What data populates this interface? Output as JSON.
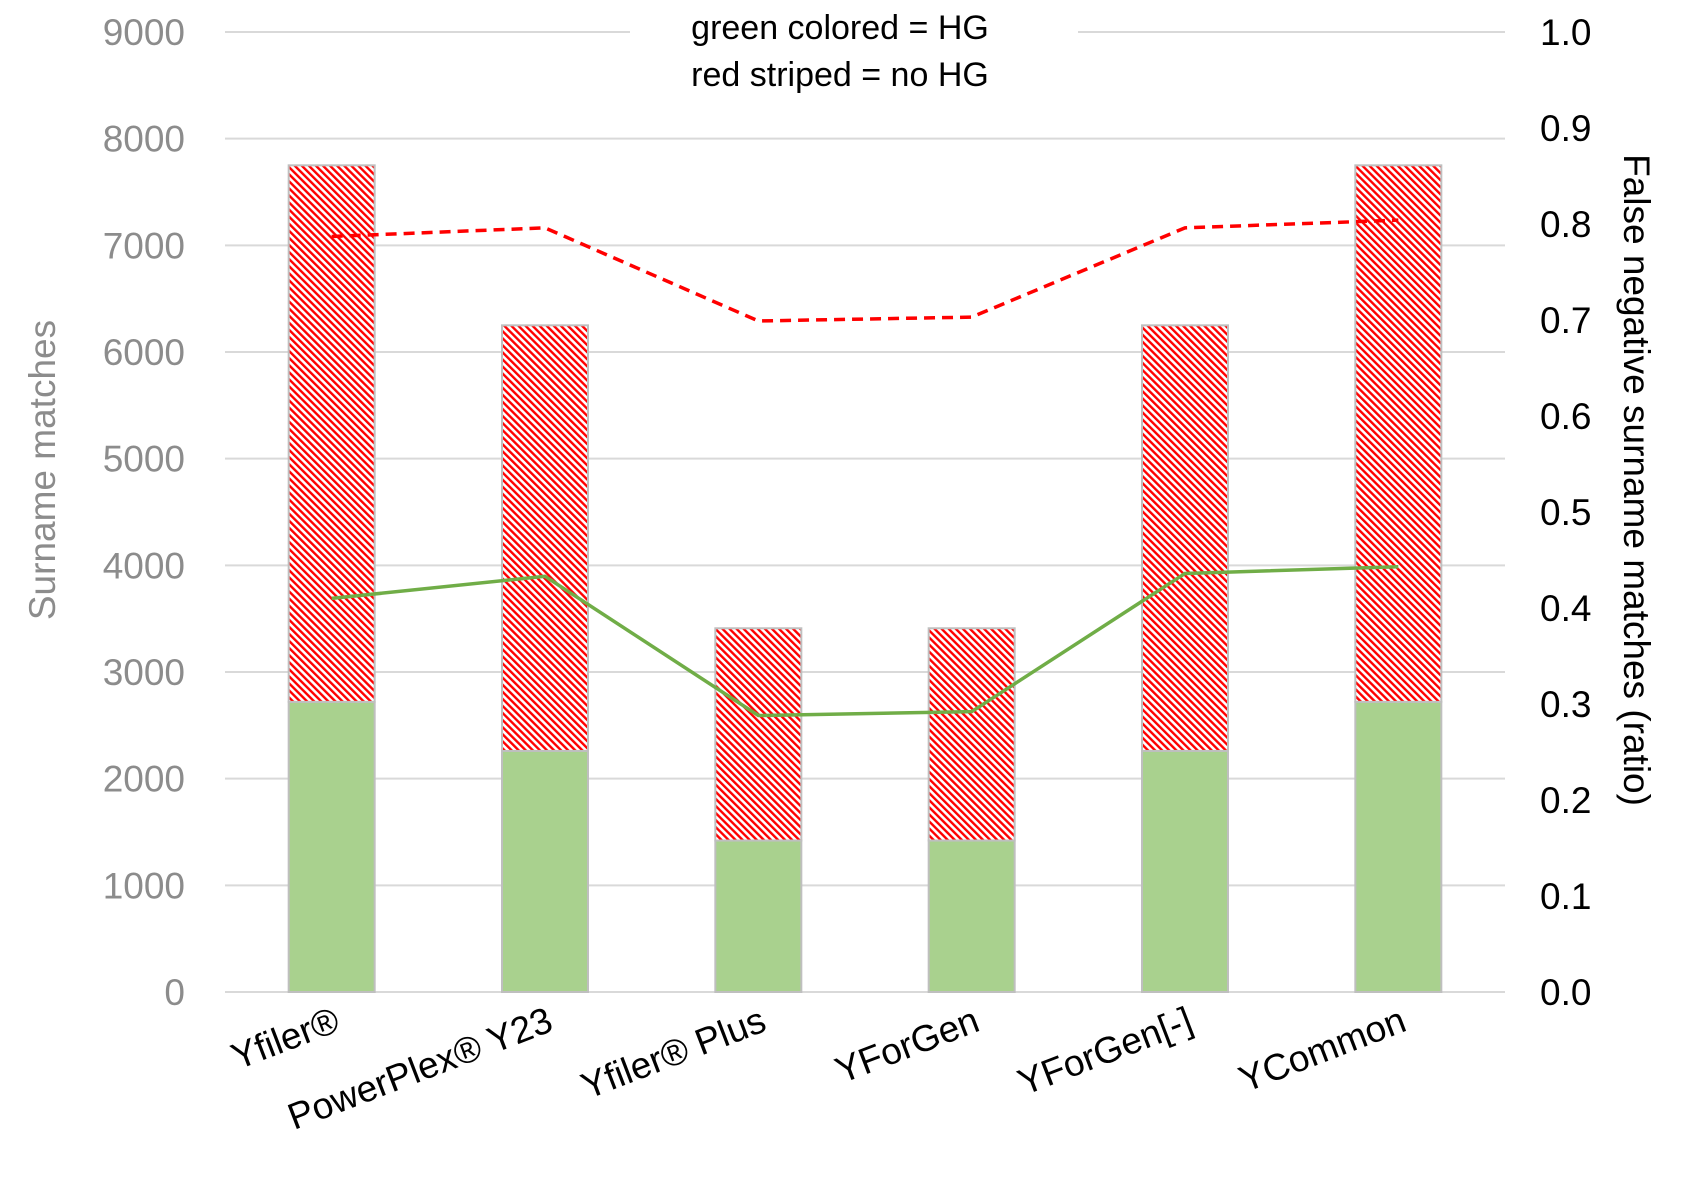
{
  "chart_data": {
    "type": "bar",
    "categories": [
      "Yfiler®",
      "PowerPlex® Y23",
      "Yfiler® Plus",
      "YForGen",
      "YForGen[-]",
      "YCommon"
    ],
    "series": [
      {
        "kind": "bar-stack",
        "role": "HG",
        "pattern": "solid",
        "color": "#a9d18e",
        "values": [
          2720,
          2260,
          1420,
          1420,
          2260,
          2720
        ]
      },
      {
        "kind": "bar-stack",
        "role": "no HG",
        "pattern": "striped",
        "color": "#ff0000",
        "values": [
          5030,
          3990,
          1990,
          1990,
          3990,
          5030
        ]
      },
      {
        "kind": "line",
        "axis": "right",
        "role": "HG",
        "style": "solid",
        "color": "#70ad47",
        "values": [
          0.41,
          0.433,
          0.288,
          0.292,
          0.436,
          0.443
        ]
      },
      {
        "kind": "line",
        "axis": "right",
        "role": "no HG",
        "style": "dashed",
        "color": "#ff0000",
        "values": [
          0.787,
          0.796,
          0.699,
          0.703,
          0.796,
          0.804
        ]
      }
    ],
    "ylabel": "Surname matches",
    "y2label": "False negative surname matches (ratio)",
    "ylim": [
      0,
      9000
    ],
    "y2lim": [
      0,
      1.0
    ],
    "yticks": [
      "0",
      "1000",
      "2000",
      "3000",
      "4000",
      "5000",
      "6000",
      "7000",
      "8000",
      "9000"
    ],
    "y2ticks": [
      "0.0",
      "0.1",
      "0.2",
      "0.3",
      "0.4",
      "0.5",
      "0.6",
      "0.7",
      "0.8",
      "0.9",
      "1.0"
    ],
    "grid": true,
    "legend": {
      "placement": "top-center",
      "lines": [
        "green colored = HG",
        "red striped = no HG"
      ]
    },
    "colors": {
      "grid": "#d9d9d9",
      "bar_border": "#bfbfbf",
      "hg_fill": "#a9d18e",
      "stripe": "#ff0000",
      "hg_line": "#70ad47",
      "nohg_line": "#ff0000",
      "left_axis_text": "#8c8c8c"
    }
  }
}
